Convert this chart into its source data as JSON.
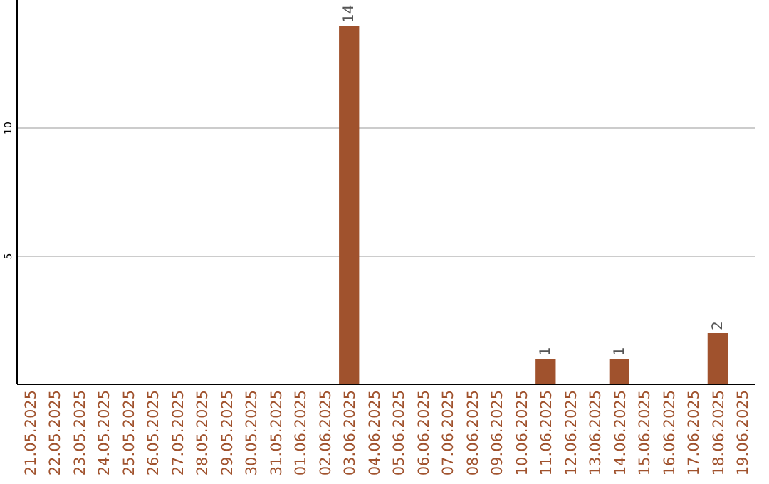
{
  "chart_data": {
    "type": "bar",
    "categories": [
      "21.05.2025",
      "22.05.2025",
      "23.05.2025",
      "24.05.2025",
      "25.05.2025",
      "26.05.2025",
      "27.05.2025",
      "28.05.2025",
      "29.05.2025",
      "30.05.2025",
      "31.05.2025",
      "01.06.2025",
      "02.06.2025",
      "03.06.2025",
      "04.06.2025",
      "05.06.2025",
      "06.06.2025",
      "07.06.2025",
      "08.06.2025",
      "09.06.2025",
      "10.06.2025",
      "11.06.2025",
      "12.06.2025",
      "13.06.2025",
      "14.06.2025",
      "15.06.2025",
      "16.06.2025",
      "17.06.2025",
      "18.06.2025",
      "19.06.2025"
    ],
    "values": [
      null,
      null,
      null,
      null,
      null,
      null,
      null,
      null,
      null,
      null,
      null,
      null,
      null,
      14,
      null,
      null,
      null,
      null,
      null,
      null,
      null,
      1,
      null,
      null,
      1,
      null,
      null,
      null,
      2,
      null
    ],
    "color": "#a0522d",
    "ylim": [
      0,
      15
    ],
    "yticks": [
      5,
      10
    ],
    "grid": "y",
    "data_labels": true
  }
}
